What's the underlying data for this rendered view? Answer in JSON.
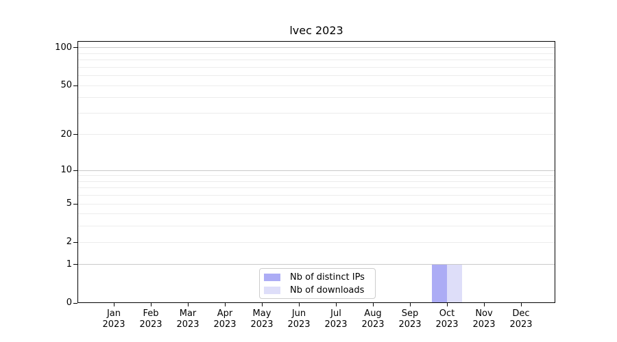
{
  "chart_data": {
    "type": "bar",
    "title": "lvec 2023",
    "year": "2023",
    "categories": [
      "Jan",
      "Feb",
      "Mar",
      "Apr",
      "May",
      "Jun",
      "Jul",
      "Aug",
      "Sep",
      "Oct",
      "Nov",
      "Dec"
    ],
    "series": [
      {
        "name": "Nb of distinct IPs",
        "color": "#acacf5",
        "values": [
          0,
          0,
          0,
          0,
          0,
          0,
          0,
          0,
          0,
          1,
          0,
          0
        ]
      },
      {
        "name": "Nb of downloads",
        "color": "#dedef9",
        "values": [
          0,
          0,
          0,
          0,
          0,
          0,
          0,
          0,
          0,
          1,
          0,
          0
        ]
      }
    ],
    "y_axis": {
      "scale": "log10(1+value)",
      "ticks": [
        0,
        1,
        2,
        5,
        10,
        20,
        50,
        100
      ],
      "major_gridlines": [
        1,
        10,
        100
      ],
      "minor_gridlines": [
        2,
        3,
        4,
        5,
        6,
        7,
        8,
        9,
        20,
        30,
        40,
        50,
        60,
        70,
        80,
        90
      ],
      "range_top": 113
    },
    "x_axis": {
      "tick_label_format": "month-over-year"
    },
    "legend": {
      "position": "lower-center",
      "labels": [
        "Nb of distinct IPs",
        "Nb of downloads"
      ]
    },
    "grid": true
  },
  "colors": {
    "background": "#ffffff",
    "spine": "#000000",
    "major_grid": "#c9c9c9",
    "minor_grid": "#ececec",
    "legend_border": "#cccccc",
    "text": "#000000"
  }
}
